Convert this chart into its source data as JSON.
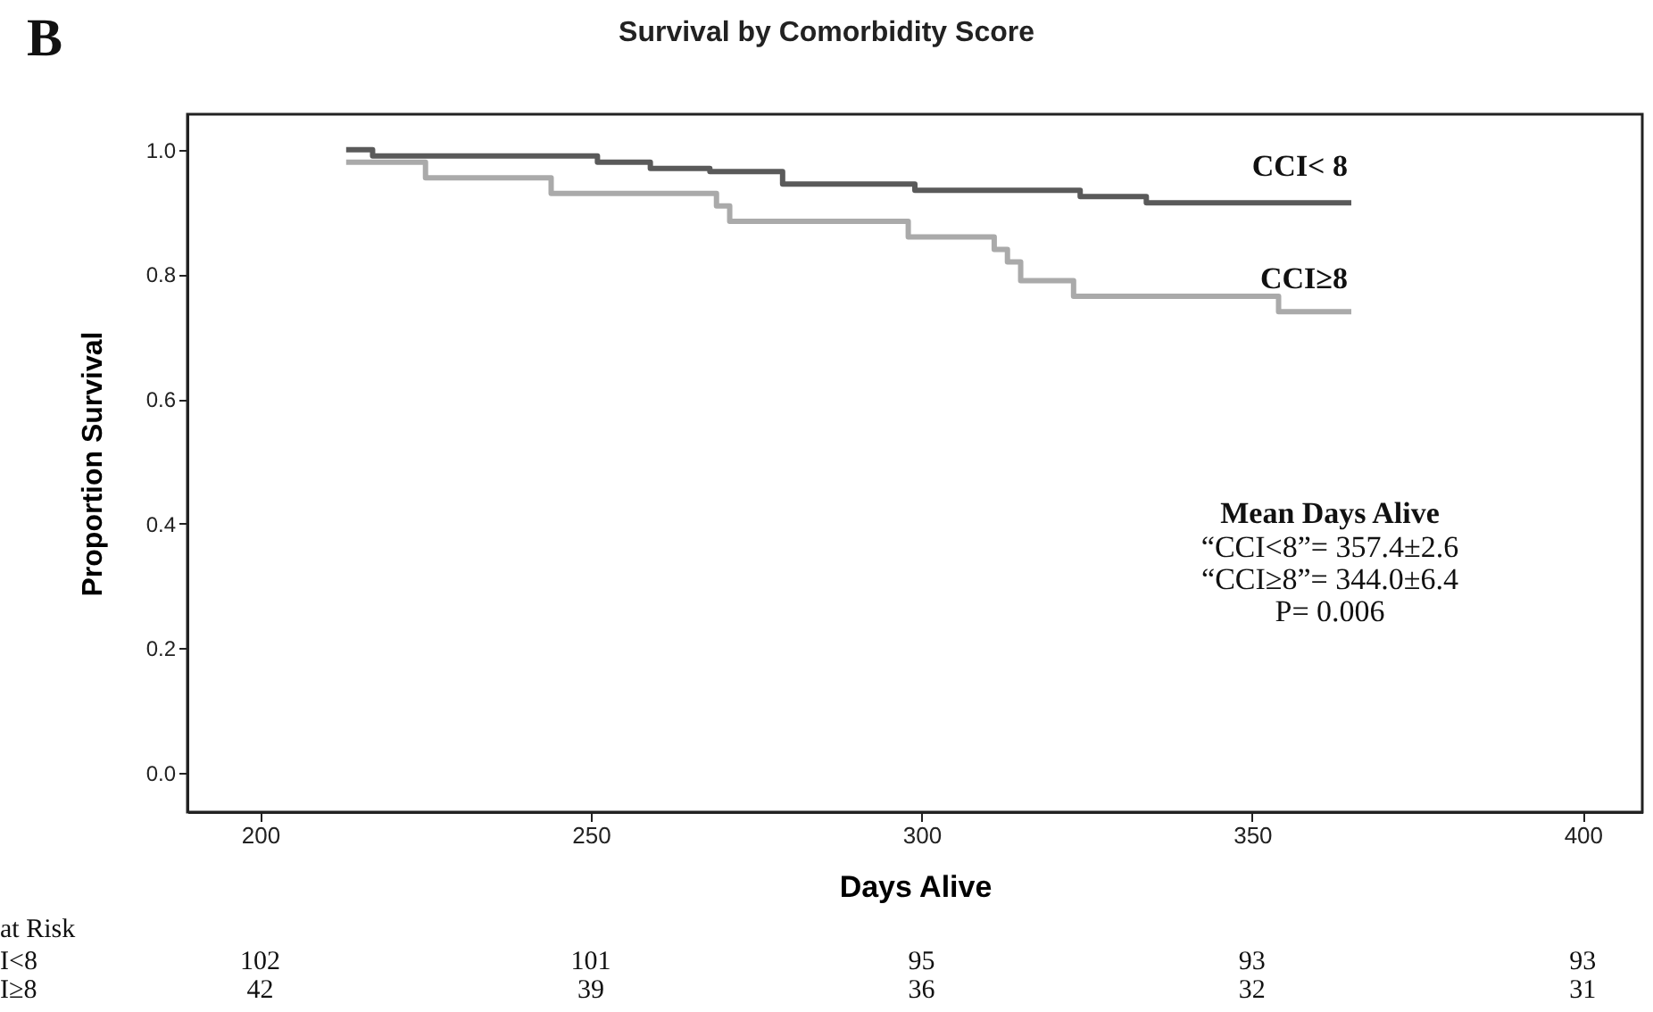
{
  "chart_data": {
    "type": "step",
    "title": "Survival by Comorbidity Score",
    "xlabel": "Days Alive",
    "ylabel": "Proportion Survival",
    "xlim": [
      189,
      409
    ],
    "xticks": [
      200,
      250,
      300,
      350,
      400
    ],
    "ylim": [
      -0.063,
      1.057
    ],
    "yticks": [
      {
        "value": 0,
        "label": "0.0"
      },
      {
        "value": 0.2,
        "label": "0.2"
      },
      {
        "value": 0.4,
        "label": "0.4"
      },
      {
        "value": 0.6,
        "label": "0.6"
      },
      {
        "value": 0.8,
        "label": "0.8"
      },
      {
        "value": 1,
        "label": "1.0"
      }
    ],
    "grid": false,
    "legend": false,
    "marker": "none",
    "line_style": "solid",
    "series": [
      {
        "name": "CCI< 8",
        "color": "#5a5a5a",
        "x": [
          213,
          217,
          251,
          259,
          268,
          279,
          299,
          324,
          334,
          365
        ],
        "values": [
          1.0,
          0.99,
          0.98,
          0.97,
          0.965,
          0.945,
          0.935,
          0.925,
          0.915,
          0.915
        ]
      },
      {
        "name": "CCI≥8",
        "color": "#aaaaaa",
        "x": [
          213,
          225,
          244,
          269,
          271,
          298,
          311,
          313,
          315,
          323,
          354,
          365
        ],
        "values": [
          0.98,
          0.955,
          0.93,
          0.91,
          0.885,
          0.86,
          0.84,
          0.82,
          0.79,
          0.765,
          0.74,
          0.74
        ]
      }
    ],
    "annotations": [
      "B",
      "Mean Days Alive",
      "“CCI<8”= 357.4±2.6",
      "“CCI≥8”= 344.0±6.4",
      "P= 0.006",
      "at Risk",
      "I<8",
      "I≥8",
      "102",
      "101",
      "95",
      "93",
      "93",
      "42",
      "39",
      "36",
      "32",
      "31"
    ]
  }
}
